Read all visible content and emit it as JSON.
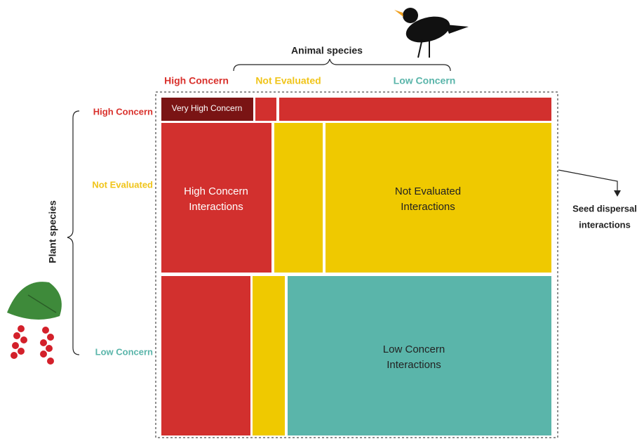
{
  "title": "Animal species",
  "animal_categories": [
    "High Concern",
    "Not Evaluated",
    "Low Concern"
  ],
  "plant_title": "Plant species",
  "plant_categories": [
    "High Concern",
    "Not Evaluated",
    "Low Concern"
  ],
  "cells": {
    "very_high": "Very High Concern",
    "high": [
      "High Concern",
      "Interactions"
    ],
    "not_evaluated": [
      "Not Evaluated",
      "Interactions"
    ],
    "low": [
      "Low Concern",
      "Interactions"
    ]
  },
  "annotation": [
    "Seed dispersal",
    "interactions"
  ]
}
